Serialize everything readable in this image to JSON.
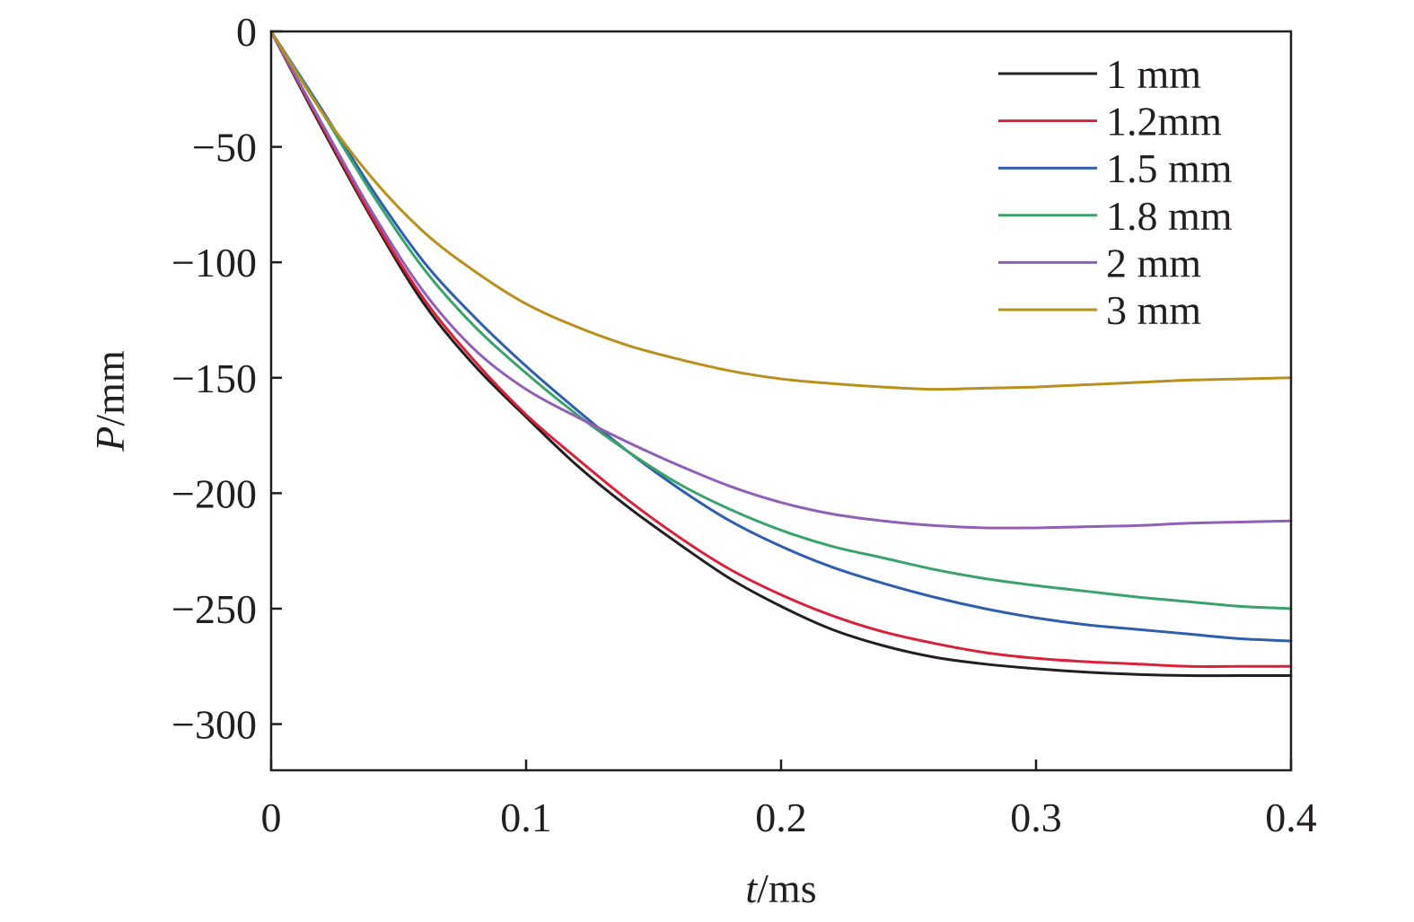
{
  "chart_data": {
    "type": "line",
    "xlabel": {
      "var": "t",
      "unit": "/ms"
    },
    "ylabel": {
      "var": "P",
      "unit": "/mm"
    },
    "xlim": [
      0,
      0.4
    ],
    "ylim": [
      -320,
      0
    ],
    "xticks": [
      {
        "value": 0,
        "label": "0"
      },
      {
        "value": 0.1,
        "label": "0.1"
      },
      {
        "value": 0.2,
        "label": "0.2"
      },
      {
        "value": 0.3,
        "label": "0.3"
      },
      {
        "value": 0.4,
        "label": "0.4"
      }
    ],
    "yticks": [
      {
        "value": 0,
        "label": "0"
      },
      {
        "value": -50,
        "label": "−50"
      },
      {
        "value": -100,
        "label": "−100"
      },
      {
        "value": -150,
        "label": "−150"
      },
      {
        "value": -200,
        "label": "−200"
      },
      {
        "value": -250,
        "label": "−250"
      },
      {
        "value": -300,
        "label": "−300"
      }
    ],
    "grid": false,
    "legend_position": "top-right",
    "x": [
      0,
      0.02,
      0.04,
      0.06,
      0.08,
      0.1,
      0.12,
      0.14,
      0.16,
      0.18,
      0.2,
      0.22,
      0.24,
      0.26,
      0.28,
      0.3,
      0.32,
      0.34,
      0.36,
      0.38,
      0.4
    ],
    "series": [
      {
        "name": "1 mm",
        "color": "#231f20",
        "values": [
          0,
          -42,
          -82,
          -118,
          -145,
          -167,
          -188,
          -206,
          -222,
          -237,
          -249,
          -259,
          -266,
          -271,
          -274,
          -276,
          -277.5,
          -278.5,
          -279,
          -279,
          -279
        ]
      },
      {
        "name": "1.2mm",
        "color": "#d7233a",
        "values": [
          0,
          -41,
          -81,
          -116,
          -143,
          -166,
          -185,
          -203,
          -219,
          -233,
          -244,
          -253,
          -260,
          -265,
          -269,
          -271.5,
          -273,
          -274,
          -275,
          -275,
          -275
        ]
      },
      {
        "name": "1.5 mm",
        "color": "#2f5fac",
        "values": [
          0,
          -34,
          -69,
          -100,
          -124,
          -145,
          -164,
          -182,
          -198,
          -212,
          -223,
          -232,
          -239,
          -245,
          -250,
          -254,
          -257,
          -259,
          -261,
          -263,
          -264
        ]
      },
      {
        "name": "1.8 mm",
        "color": "#3aa36b",
        "values": [
          0,
          -35,
          -71,
          -103,
          -128,
          -148,
          -166,
          -182,
          -196,
          -207,
          -216,
          -223,
          -228,
          -233,
          -237,
          -240,
          -242.5,
          -245,
          -247,
          -249,
          -250
        ]
      },
      {
        "name": "2 mm",
        "color": "#9060b6",
        "values": [
          0,
          -40,
          -79,
          -113,
          -138,
          -155,
          -167,
          -178,
          -188,
          -197,
          -204,
          -209,
          -212,
          -214,
          -215,
          -215,
          -214.5,
          -214,
          -213,
          -212.5,
          -212
        ]
      },
      {
        "name": "3 mm",
        "color": "#b8901e",
        "values": [
          0,
          -35,
          -64,
          -87,
          -104,
          -118,
          -128,
          -136,
          -142,
          -147,
          -150.5,
          -152.5,
          -154,
          -155,
          -154.5,
          -154,
          -153,
          -152,
          -151,
          -150.5,
          -150
        ]
      }
    ]
  }
}
